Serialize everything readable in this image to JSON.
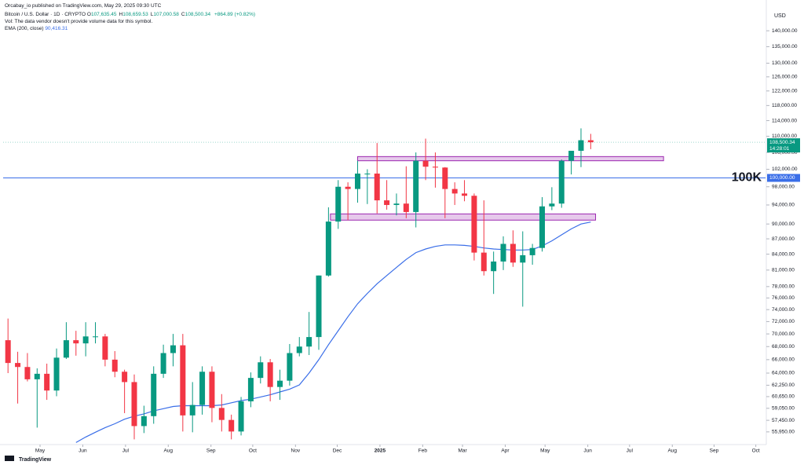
{
  "header": {
    "publisher": "Orcabay_io published on TradingView.com, May 29, 2025 09:30 UTC",
    "symbol": "Bitcoin / U.S. Dollar · 1D · CRYPTO",
    "ohlc": [
      {
        "label": "O",
        "value": "107,635.45"
      },
      {
        "label": "H",
        "value": "108,659.53"
      },
      {
        "label": "L",
        "value": "107,000.58"
      },
      {
        "label": "C",
        "value": "108,500.34"
      }
    ],
    "change": "+864.89 (+0.82%)",
    "vol": "Vol: The data vendor doesn't provide volume data for this symbol.",
    "ema_label": "EMA (200, close)",
    "ema_value": "90,416.31",
    "currency": "USD",
    "brand": "TradingView"
  },
  "chart_data": {
    "type": "candlestick",
    "log_scale": true,
    "up_color": "#089981",
    "down_color": "#f23645",
    "categories": [
      null,
      null,
      null,
      null,
      null,
      null,
      null,
      null,
      null,
      null,
      null,
      null,
      null,
      null,
      null,
      null,
      null,
      null,
      null,
      null,
      null,
      null,
      null,
      null,
      null,
      null,
      null,
      null,
      null,
      null,
      null,
      null,
      null,
      null,
      null,
      null,
      null,
      null,
      null,
      null,
      null,
      null,
      null,
      null,
      null,
      null,
      null,
      null,
      null,
      null,
      null,
      null,
      null,
      null,
      null,
      null,
      null,
      null,
      null,
      null,
      null
    ],
    "open": [
      69000,
      65500,
      64900,
      63100,
      63900,
      61500,
      66300,
      69000,
      68500,
      69600,
      69600,
      66000,
      64200,
      62700,
      56700,
      58000,
      63900,
      67000,
      68200,
      58100,
      59500,
      64200,
      59100,
      57500,
      56000,
      60000,
      63300,
      65600,
      62000,
      62900,
      67000,
      68000,
      69500,
      80000,
      90500,
      98000,
      97500,
      101000,
      101000,
      95000,
      94000,
      94300,
      92500,
      104000,
      102600,
      102400,
      97500,
      96500,
      96000,
      84300,
      80800,
      82600,
      86000,
      82400,
      83800,
      85200,
      93700,
      94300,
      104000,
      106400,
      109000
    ],
    "high": [
      72500,
      67200,
      67000,
      64700,
      65400,
      67700,
      71900,
      70500,
      71900,
      71900,
      70000,
      67300,
      64500,
      63800,
      59400,
      65000,
      68300,
      70000,
      70000,
      62700,
      65000,
      65000,
      61000,
      58200,
      60600,
      64100,
      66500,
      66100,
      64500,
      68400,
      69500,
      73600,
      80000,
      93500,
      99500,
      99000,
      104000,
      102000,
      108300,
      99500,
      96500,
      102700,
      106000,
      109400,
      106000,
      102500,
      99000,
      99500,
      96500,
      95000,
      84500,
      87500,
      88700,
      88500,
      86000,
      95700,
      97900,
      104300,
      105800,
      112000,
      110600
    ],
    "low": [
      64000,
      59700,
      62800,
      56500,
      60200,
      60700,
      66100,
      66600,
      66500,
      68500,
      65000,
      63400,
      58400,
      55000,
      55800,
      57000,
      63300,
      65000,
      56000,
      55900,
      58200,
      57200,
      56000,
      55000,
      55500,
      59200,
      62500,
      60000,
      60200,
      62200,
      66500,
      66700,
      67500,
      79800,
      89000,
      90800,
      94500,
      94200,
      92200,
      93000,
      91800,
      91200,
      89300,
      99500,
      97800,
      91200,
      94000,
      94800,
      82800,
      80000,
      76700,
      81000,
      81600,
      74500,
      82000,
      84500,
      92900,
      93400,
      100800,
      102500,
      106800
    ],
    "close": [
      65500,
      64900,
      63100,
      63900,
      61500,
      66300,
      69000,
      68500,
      69600,
      69600,
      66000,
      64200,
      62700,
      56700,
      58000,
      63900,
      67000,
      68200,
      58100,
      59500,
      64200,
      59100,
      57500,
      56000,
      60000,
      63300,
      65600,
      62000,
      62900,
      67000,
      68000,
      69500,
      80000,
      90500,
      98000,
      97500,
      101000,
      101000,
      95000,
      94000,
      94300,
      92500,
      104000,
      102600,
      102400,
      97500,
      96500,
      96000,
      84300,
      80800,
      82600,
      86000,
      82400,
      83800,
      85200,
      93700,
      94300,
      104000,
      106400,
      109000,
      108500
    ],
    "series": [
      {
        "name": "EMA (200, close)",
        "color": "#3a6ee8",
        "values": [
          null,
          null,
          null,
          null,
          null,
          null,
          null,
          54600,
          55300,
          55900,
          56500,
          57000,
          57600,
          58000,
          58300,
          58700,
          59000,
          59300,
          59400,
          59400,
          59400,
          59400,
          59500,
          59800,
          60100,
          60300,
          60600,
          60900,
          61300,
          61700,
          62300,
          64000,
          66000,
          68300,
          70500,
          72800,
          75000,
          76800,
          78500,
          80000,
          81500,
          83000,
          84300,
          85000,
          85500,
          85800,
          85800,
          85700,
          85500,
          85200,
          85000,
          84900,
          84800,
          84800,
          84900,
          85600,
          86600,
          87800,
          89000,
          90000,
          90400
        ]
      }
    ],
    "xlim": [
      -0.5,
      78
    ],
    "xticks": [
      {
        "value": 3.3,
        "label": "May"
      },
      {
        "value": 7.7,
        "label": "Jun"
      },
      {
        "value": 12.1,
        "label": "Jul"
      },
      {
        "value": 16.5,
        "label": "Aug"
      },
      {
        "value": 20.9,
        "label": "Sep"
      },
      {
        "value": 25.2,
        "label": "Oct"
      },
      {
        "value": 29.6,
        "label": "Nov"
      },
      {
        "value": 33.9,
        "label": "Dec"
      },
      {
        "value": 38.3,
        "label": "2025"
      },
      {
        "value": 42.7,
        "label": "Feb"
      },
      {
        "value": 46.8,
        "label": "Mar"
      },
      {
        "value": 51.2,
        "label": "Apr"
      },
      {
        "value": 55.3,
        "label": "May"
      },
      {
        "value": 59.7,
        "label": "Jun"
      },
      {
        "value": 64.0,
        "label": "Jul"
      },
      {
        "value": 68.4,
        "label": "Aug"
      },
      {
        "value": 72.7,
        "label": "Sep"
      },
      {
        "value": 77.0,
        "label": "Oct"
      }
    ],
    "ylim": [
      54350,
      147000
    ],
    "yticks": [
      {
        "value": 140000,
        "label": "140,000.00"
      },
      {
        "value": 135000,
        "label": "135,000.00"
      },
      {
        "value": 130000,
        "label": "130,000.00"
      },
      {
        "value": 126000,
        "label": "126,000.00"
      },
      {
        "value": 122000,
        "label": "122,000.00"
      },
      {
        "value": 118000,
        "label": "118,000.00"
      },
      {
        "value": 114000,
        "label": "114,000.00"
      },
      {
        "value": 110000,
        "label": "110,000.00"
      },
      {
        "value": 106000,
        "label": "106,000.00"
      },
      {
        "value": 102000,
        "label": "102,000.00"
      },
      {
        "value": 98000,
        "label": "98,000.00"
      },
      {
        "value": 94000,
        "label": "94,000.00"
      },
      {
        "value": 90000,
        "label": "90,000.00"
      },
      {
        "value": 87000,
        "label": "87,000.00"
      },
      {
        "value": 84000,
        "label": "84,000.00"
      },
      {
        "value": 81000,
        "label": "81,000.00"
      },
      {
        "value": 78000,
        "label": "78,000.00"
      },
      {
        "value": 76000,
        "label": "76,000.00"
      },
      {
        "value": 74000,
        "label": "74,000.00"
      },
      {
        "value": 72000,
        "label": "72,000.00"
      },
      {
        "value": 70000,
        "label": "70,000.00"
      },
      {
        "value": 68000,
        "label": "68,000.00"
      },
      {
        "value": 66000,
        "label": "66,000.00"
      },
      {
        "value": 64000,
        "label": "64,000.00"
      },
      {
        "value": 62250,
        "label": "62,250.00"
      },
      {
        "value": 60650,
        "label": "60,650.00"
      },
      {
        "value": 59050,
        "label": "59,050.00"
      },
      {
        "value": 57450,
        "label": "57,450.00"
      },
      {
        "value": 55950,
        "label": "55,950.00"
      }
    ],
    "level_line": {
      "value": 100000,
      "label": "100,000.00",
      "annotation": "100K",
      "color": "#3a6ee8"
    },
    "price_tag": {
      "value": 108500.34,
      "label": "108,500.34",
      "countdown": "14:28:01",
      "color": "#089981"
    },
    "zones": [
      {
        "low": 104000,
        "high": 105000,
        "x": [
          36,
          67.5
        ]
      },
      {
        "low": 90800,
        "high": 92100,
        "x": [
          33.2,
          60.5
        ]
      }
    ],
    "zone_color": "#9c27b0"
  }
}
